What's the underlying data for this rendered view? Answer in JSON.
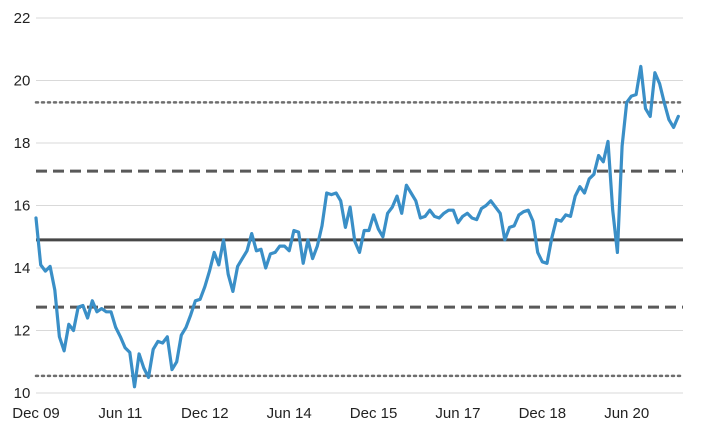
{
  "colors": {
    "series": "#3a8fc7",
    "mean": "#474747",
    "sd1": "#595959",
    "sd2": "#6e6e6e",
    "grid": "#d9d9d9",
    "text": "#222222"
  },
  "chart_data": {
    "type": "line",
    "title": "",
    "xlabel": "",
    "ylabel": "",
    "ylim": [
      10,
      22
    ],
    "yticks": [
      "10",
      "12",
      "14",
      "16",
      "18",
      "20",
      "22"
    ],
    "xlim": [
      "2009-12",
      "2021-06"
    ],
    "xticks": [
      {
        "label": "Dec 09",
        "date": "2009-12"
      },
      {
        "label": "Jun 11",
        "date": "2011-06"
      },
      {
        "label": "Dec 12",
        "date": "2012-12"
      },
      {
        "label": "Jun 14",
        "date": "2014-06"
      },
      {
        "label": "Dec 15",
        "date": "2015-12"
      },
      {
        "label": "Jun 17",
        "date": "2017-06"
      },
      {
        "label": "Dec 18",
        "date": "2018-12"
      },
      {
        "label": "Jun 20",
        "date": "2020-06"
      }
    ],
    "grid": "horizontal",
    "legend": "none",
    "reference_lines": [
      {
        "kind": "mean",
        "style": "solid",
        "value": 14.9
      },
      {
        "kind": "plus_1_sd",
        "style": "dashed",
        "value": 17.1
      },
      {
        "kind": "minus_1_sd",
        "style": "dashed",
        "value": 12.75
      },
      {
        "kind": "plus_2_sd",
        "style": "dotted",
        "value": 19.3
      },
      {
        "kind": "minus_2_sd",
        "style": "dotted",
        "value": 10.55
      }
    ],
    "series": [
      {
        "x": [
          "2009-12",
          "2010-01",
          "2010-02",
          "2010-03",
          "2010-04",
          "2010-05",
          "2010-06",
          "2010-07",
          "2010-08",
          "2010-09",
          "2010-10",
          "2010-11",
          "2010-12",
          "2011-01",
          "2011-02",
          "2011-03",
          "2011-04",
          "2011-05",
          "2011-06",
          "2011-07",
          "2011-08",
          "2011-09",
          "2011-10",
          "2011-11",
          "2011-12",
          "2012-01",
          "2012-02",
          "2012-03",
          "2012-04",
          "2012-05",
          "2012-06",
          "2012-07",
          "2012-08",
          "2012-09",
          "2012-10",
          "2012-11",
          "2012-12",
          "2013-01",
          "2013-02",
          "2013-03",
          "2013-04",
          "2013-05",
          "2013-06",
          "2013-07",
          "2013-08",
          "2013-09",
          "2013-10",
          "2013-11",
          "2013-12",
          "2014-01",
          "2014-02",
          "2014-03",
          "2014-04",
          "2014-05",
          "2014-06",
          "2014-07",
          "2014-08",
          "2014-09",
          "2014-10",
          "2014-11",
          "2014-12",
          "2015-01",
          "2015-02",
          "2015-03",
          "2015-04",
          "2015-05",
          "2015-06",
          "2015-07",
          "2015-08",
          "2015-09",
          "2015-10",
          "2015-11",
          "2015-12",
          "2016-01",
          "2016-02",
          "2016-03",
          "2016-04",
          "2016-05",
          "2016-06",
          "2016-07",
          "2016-08",
          "2016-09",
          "2016-10",
          "2016-11",
          "2016-12",
          "2017-01",
          "2017-02",
          "2017-03",
          "2017-04",
          "2017-05",
          "2017-06",
          "2017-07",
          "2017-08",
          "2017-09",
          "2017-10",
          "2017-11",
          "2017-12",
          "2018-01",
          "2018-02",
          "2018-03",
          "2018-04",
          "2018-05",
          "2018-06",
          "2018-07",
          "2018-08",
          "2018-09",
          "2018-10",
          "2018-11",
          "2018-12",
          "2019-01",
          "2019-02",
          "2019-03",
          "2019-04",
          "2019-05",
          "2019-06",
          "2019-07",
          "2019-08",
          "2019-09",
          "2019-10",
          "2019-11",
          "2019-12",
          "2020-01",
          "2020-02",
          "2020-03",
          "2020-04",
          "2020-05",
          "2020-06",
          "2020-07",
          "2020-08",
          "2020-09",
          "2020-10",
          "2020-11",
          "2020-12",
          "2021-01",
          "2021-02",
          "2021-03",
          "2021-04",
          "2021-05"
        ],
        "values": [
          15.6,
          14.1,
          13.9,
          14.05,
          13.3,
          11.8,
          11.35,
          12.2,
          12.0,
          12.75,
          12.8,
          12.4,
          12.95,
          12.6,
          12.7,
          12.6,
          12.6,
          12.1,
          11.8,
          11.45,
          11.3,
          10.2,
          11.25,
          10.8,
          10.5,
          11.4,
          11.65,
          11.6,
          11.8,
          10.75,
          11.0,
          11.85,
          12.1,
          12.5,
          12.95,
          13.0,
          13.4,
          13.9,
          14.5,
          14.1,
          14.9,
          13.8,
          13.25,
          14.05,
          14.3,
          14.55,
          15.1,
          14.55,
          14.6,
          14.0,
          14.45,
          14.5,
          14.7,
          14.7,
          14.55,
          15.2,
          15.15,
          14.15,
          14.9,
          14.3,
          14.7,
          15.35,
          16.4,
          16.35,
          16.4,
          16.15,
          15.3,
          15.95,
          14.85,
          14.5,
          15.2,
          15.2,
          15.7,
          15.25,
          15.0,
          15.75,
          15.95,
          16.3,
          15.75,
          16.65,
          16.4,
          16.15,
          15.6,
          15.65,
          15.85,
          15.65,
          15.6,
          15.75,
          15.85,
          15.85,
          15.45,
          15.65,
          15.75,
          15.6,
          15.55,
          15.9,
          16.0,
          16.15,
          15.95,
          15.75,
          14.9,
          15.3,
          15.35,
          15.7,
          15.8,
          15.85,
          15.5,
          14.5,
          14.2,
          14.15,
          14.95,
          15.55,
          15.5,
          15.7,
          15.65,
          16.3,
          16.6,
          16.4,
          16.85,
          17.0,
          17.6,
          17.4,
          18.05,
          15.85,
          14.5,
          17.9,
          19.3,
          19.5,
          19.55,
          20.45,
          19.1,
          18.85,
          20.25,
          19.9,
          19.3,
          18.75,
          18.5,
          18.85
        ]
      }
    ]
  }
}
